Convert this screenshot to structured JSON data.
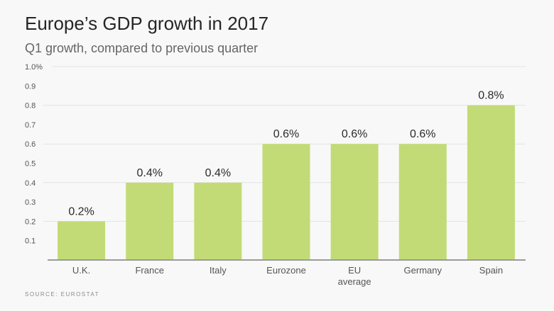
{
  "header": {
    "title": "Europe’s GDP growth in 2017",
    "subtitle": "Q1 growth, compared to previous quarter"
  },
  "footer": {
    "source": "SOURCE: EUROSTAT"
  },
  "colors": {
    "bar": "#c2db76",
    "grid": "#e3e3e3",
    "axis": "#9a9a9a",
    "background": "#f8f8f8"
  },
  "chart_data": {
    "type": "bar",
    "title": "Europe’s GDP growth in 2017",
    "subtitle": "Q1 growth, compared to previous quarter",
    "xlabel": "",
    "ylabel": "",
    "categories": [
      [
        "U.K."
      ],
      [
        "France"
      ],
      [
        "Italy"
      ],
      [
        "Eurozone"
      ],
      [
        "EU",
        "average"
      ],
      [
        "Germany"
      ],
      [
        "Spain"
      ]
    ],
    "values": [
      0.2,
      0.4,
      0.4,
      0.6,
      0.6,
      0.6,
      0.8
    ],
    "data_labels": [
      "0.2%",
      "0.4%",
      "0.4%",
      "0.6%",
      "0.6%",
      "0.6%",
      "0.8%"
    ],
    "ylim": [
      0,
      1.0
    ],
    "yticks": [
      0.1,
      0.2,
      0.3,
      0.4,
      0.5,
      0.6,
      0.7,
      0.8,
      0.9,
      1.0
    ],
    "ytick_labels": [
      "0.1",
      "0.2",
      "0.3",
      "0.4",
      "0.5",
      "0.6",
      "0.7",
      "0.8",
      "0.9",
      "1.0%"
    ],
    "gridlines_at": [
      0.2,
      0.4,
      0.6,
      0.8,
      1.0
    ],
    "grid": true,
    "legend": "none",
    "source": "SOURCE: EUROSTAT"
  }
}
